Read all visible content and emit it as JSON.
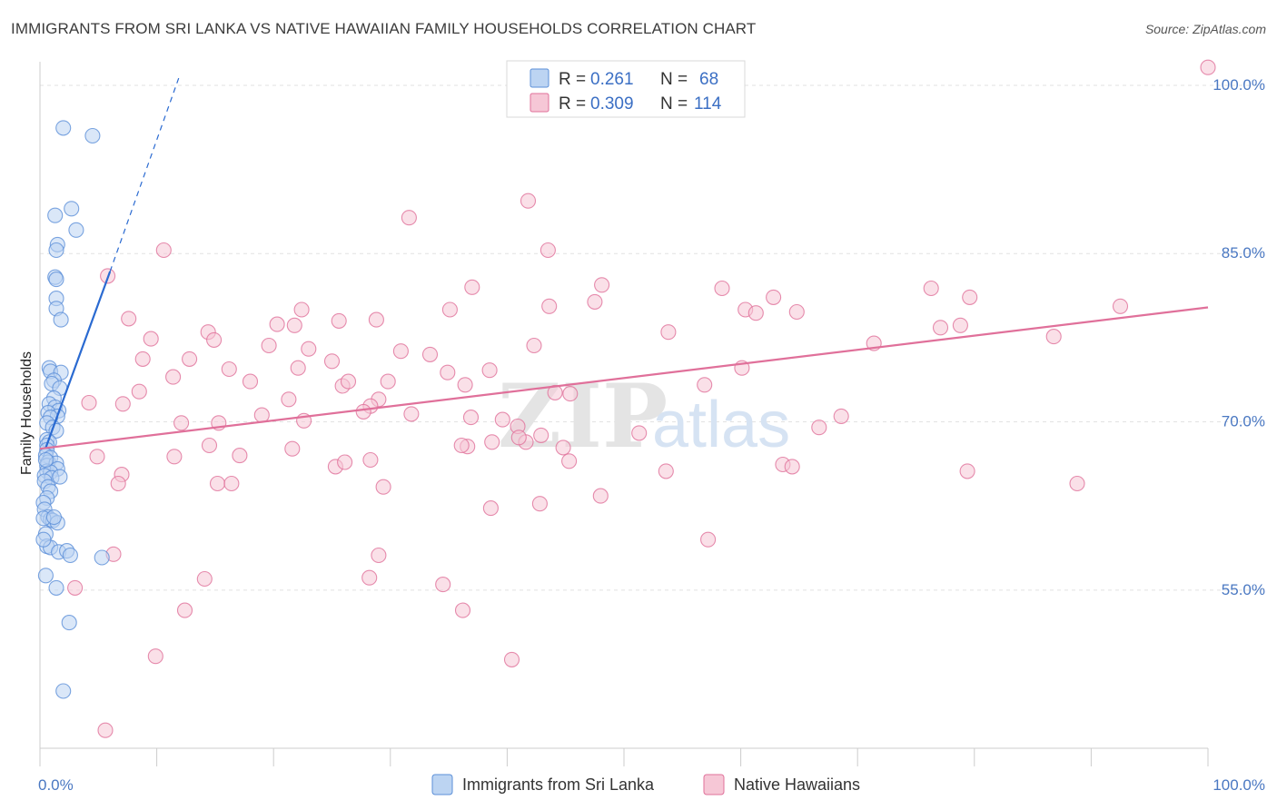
{
  "title": "IMMIGRANTS FROM SRI LANKA VS NATIVE HAWAIIAN FAMILY HOUSEHOLDS CORRELATION CHART",
  "source": "Source: ZipAtlas.com",
  "watermark": {
    "zip": "ZIP",
    "atlas": "atlas"
  },
  "colors": {
    "blue": "#5b8fd8",
    "blue_fill": "#bcd4f2",
    "pink": "#e0709a",
    "pink_fill": "#f6c7d6",
    "blue_line": "#2a6ad1",
    "pink_line": "#e0709a",
    "tick_text": "#4a78c2"
  },
  "legend": {
    "rows": [
      {
        "r_label": "R =",
        "r_value": "0.261",
        "n_label": "N =",
        "n_value": "68",
        "series": "blue"
      },
      {
        "r_label": "R =",
        "r_value": "0.309",
        "n_label": "N =",
        "n_value": "114",
        "series": "pink"
      }
    ]
  },
  "chart_data": {
    "type": "scatter",
    "title": "IMMIGRANTS FROM SRI LANKA VS NATIVE HAWAIIAN FAMILY HOUSEHOLDS CORRELATION CHART",
    "xlabel": "",
    "ylabel": "Family Households",
    "xlim": [
      0,
      100
    ],
    "ylim": [
      40.9,
      102.1
    ],
    "x_tick_labels": [
      "0.0%",
      "100.0%"
    ],
    "y_ticks": [
      {
        "value": 100,
        "label": "100.0%"
      },
      {
        "value": 85,
        "label": "85.0%"
      },
      {
        "value": 70,
        "label": "70.0%"
      },
      {
        "value": 55,
        "label": "55.0%"
      }
    ],
    "grid": true,
    "legend_position": "top-center",
    "series": [
      {
        "name": "Immigrants from Sri Lanka",
        "color": "blue",
        "trend": {
          "x": [
            0.5,
            6.0
          ],
          "y": [
            67.7,
            83.4
          ],
          "dashed_to": [
            12.0,
            101.0
          ]
        },
        "points": [
          [
            2.0,
            96.2
          ],
          [
            4.5,
            95.5
          ],
          [
            2.7,
            89.0
          ],
          [
            1.3,
            88.4
          ],
          [
            3.1,
            87.1
          ],
          [
            1.5,
            85.8
          ],
          [
            1.4,
            85.3
          ],
          [
            1.3,
            82.9
          ],
          [
            1.4,
            82.7
          ],
          [
            1.4,
            81.0
          ],
          [
            1.4,
            80.1
          ],
          [
            1.8,
            79.1
          ],
          [
            0.8,
            74.8
          ],
          [
            0.9,
            74.5
          ],
          [
            1.8,
            74.4
          ],
          [
            1.2,
            73.7
          ],
          [
            1.0,
            73.4
          ],
          [
            1.7,
            73.0
          ],
          [
            1.2,
            72.1
          ],
          [
            0.8,
            71.6
          ],
          [
            1.3,
            71.3
          ],
          [
            1.6,
            71.0
          ],
          [
            0.7,
            70.8
          ],
          [
            1.5,
            70.5
          ],
          [
            0.9,
            70.4
          ],
          [
            0.6,
            69.9
          ],
          [
            1.1,
            69.5
          ],
          [
            1.4,
            69.2
          ],
          [
            0.6,
            68.4
          ],
          [
            0.8,
            68.2
          ],
          [
            0.6,
            67.9
          ],
          [
            0.6,
            67.5
          ],
          [
            0.5,
            67.0
          ],
          [
            0.9,
            66.8
          ],
          [
            0.7,
            66.4
          ],
          [
            0.6,
            66.1
          ],
          [
            0.6,
            65.6
          ],
          [
            1.4,
            66.3
          ],
          [
            1.5,
            65.8
          ],
          [
            0.9,
            65.5
          ],
          [
            0.4,
            65.2
          ],
          [
            1.0,
            65.0
          ],
          [
            1.7,
            65.1
          ],
          [
            0.4,
            64.7
          ],
          [
            0.7,
            64.2
          ],
          [
            0.9,
            63.8
          ],
          [
            0.6,
            63.2
          ],
          [
            0.3,
            62.8
          ],
          [
            0.4,
            62.2
          ],
          [
            0.7,
            61.5
          ],
          [
            0.9,
            61.3
          ],
          [
            1.1,
            61.2
          ],
          [
            1.5,
            61.0
          ],
          [
            0.5,
            60.0
          ],
          [
            0.6,
            58.9
          ],
          [
            0.9,
            58.8
          ],
          [
            1.6,
            58.4
          ],
          [
            2.3,
            58.5
          ],
          [
            2.6,
            58.1
          ],
          [
            5.3,
            57.9
          ],
          [
            0.5,
            56.3
          ],
          [
            1.4,
            55.2
          ],
          [
            2.5,
            52.1
          ],
          [
            2.0,
            46.0
          ],
          [
            0.3,
            59.5
          ],
          [
            0.3,
            61.4
          ],
          [
            0.5,
            66.6
          ],
          [
            1.2,
            61.5
          ]
        ]
      },
      {
        "name": "Native Hawaiians",
        "color": "pink",
        "trend": {
          "x": [
            0.0,
            100.0
          ],
          "y": [
            67.6,
            80.2
          ]
        },
        "points": [
          [
            100.0,
            101.6
          ],
          [
            41.8,
            89.7
          ],
          [
            31.6,
            88.2
          ],
          [
            43.5,
            85.3
          ],
          [
            10.6,
            85.3
          ],
          [
            5.8,
            83.0
          ],
          [
            48.1,
            82.2
          ],
          [
            37.0,
            82.0
          ],
          [
            58.4,
            81.9
          ],
          [
            76.3,
            81.9
          ],
          [
            79.6,
            81.1
          ],
          [
            62.8,
            81.1
          ],
          [
            60.4,
            80.0
          ],
          [
            61.3,
            79.7
          ],
          [
            47.5,
            80.7
          ],
          [
            43.6,
            80.3
          ],
          [
            35.1,
            80.0
          ],
          [
            22.4,
            80.0
          ],
          [
            28.8,
            79.1
          ],
          [
            21.8,
            78.6
          ],
          [
            7.6,
            79.2
          ],
          [
            14.4,
            78.0
          ],
          [
            20.3,
            78.7
          ],
          [
            25.6,
            79.0
          ],
          [
            9.5,
            77.4
          ],
          [
            14.9,
            77.3
          ],
          [
            19.6,
            76.8
          ],
          [
            23.0,
            76.5
          ],
          [
            33.4,
            76.0
          ],
          [
            42.3,
            76.8
          ],
          [
            53.8,
            78.0
          ],
          [
            71.4,
            77.0
          ],
          [
            77.1,
            78.4
          ],
          [
            78.8,
            78.6
          ],
          [
            92.5,
            80.3
          ],
          [
            86.8,
            77.6
          ],
          [
            64.8,
            79.8
          ],
          [
            8.8,
            75.6
          ],
          [
            12.8,
            75.6
          ],
          [
            25.0,
            75.4
          ],
          [
            30.9,
            76.3
          ],
          [
            22.1,
            74.8
          ],
          [
            16.2,
            74.7
          ],
          [
            11.4,
            74.0
          ],
          [
            18.0,
            73.6
          ],
          [
            8.5,
            72.7
          ],
          [
            25.9,
            73.2
          ],
          [
            26.4,
            73.6
          ],
          [
            29.8,
            73.6
          ],
          [
            29.0,
            72.0
          ],
          [
            38.5,
            74.6
          ],
          [
            44.1,
            72.6
          ],
          [
            56.9,
            73.3
          ],
          [
            60.1,
            74.8
          ],
          [
            34.9,
            74.4
          ],
          [
            36.4,
            73.3
          ],
          [
            45.4,
            72.5
          ],
          [
            4.2,
            71.7
          ],
          [
            7.1,
            71.6
          ],
          [
            21.3,
            72.0
          ],
          [
            28.3,
            71.4
          ],
          [
            27.7,
            70.9
          ],
          [
            12.1,
            69.9
          ],
          [
            15.3,
            69.9
          ],
          [
            19.0,
            70.6
          ],
          [
            22.6,
            70.1
          ],
          [
            36.9,
            70.4
          ],
          [
            40.9,
            69.6
          ],
          [
            39.6,
            70.2
          ],
          [
            31.8,
            70.7
          ],
          [
            68.6,
            70.5
          ],
          [
            66.7,
            69.5
          ],
          [
            14.5,
            67.9
          ],
          [
            17.1,
            67.0
          ],
          [
            21.6,
            67.6
          ],
          [
            38.7,
            68.2
          ],
          [
            41.6,
            68.2
          ],
          [
            41.0,
            68.6
          ],
          [
            51.3,
            69.0
          ],
          [
            44.8,
            67.7
          ],
          [
            36.6,
            67.8
          ],
          [
            25.3,
            66.0
          ],
          [
            4.9,
            66.9
          ],
          [
            7.0,
            65.3
          ],
          [
            11.5,
            66.9
          ],
          [
            26.1,
            66.4
          ],
          [
            28.3,
            66.6
          ],
          [
            36.1,
            67.9
          ],
          [
            42.9,
            68.8
          ],
          [
            45.3,
            66.5
          ],
          [
            53.6,
            65.6
          ],
          [
            63.6,
            66.2
          ],
          [
            64.4,
            66.0
          ],
          [
            79.4,
            65.6
          ],
          [
            6.7,
            64.5
          ],
          [
            15.2,
            64.5
          ],
          [
            16.4,
            64.5
          ],
          [
            29.4,
            64.2
          ],
          [
            48.0,
            63.4
          ],
          [
            88.8,
            64.5
          ],
          [
            6.3,
            58.2
          ],
          [
            14.1,
            56.0
          ],
          [
            29.0,
            58.1
          ],
          [
            28.2,
            56.1
          ],
          [
            34.5,
            55.5
          ],
          [
            3.0,
            55.2
          ],
          [
            40.4,
            48.8
          ],
          [
            36.2,
            53.2
          ],
          [
            9.9,
            49.1
          ],
          [
            12.4,
            53.2
          ],
          [
            38.6,
            62.3
          ],
          [
            42.8,
            62.7
          ],
          [
            57.2,
            59.5
          ],
          [
            5.6,
            42.5
          ]
        ]
      }
    ]
  },
  "bottom_legend": [
    "Immigrants from Sri Lanka",
    "Native Hawaiians"
  ]
}
